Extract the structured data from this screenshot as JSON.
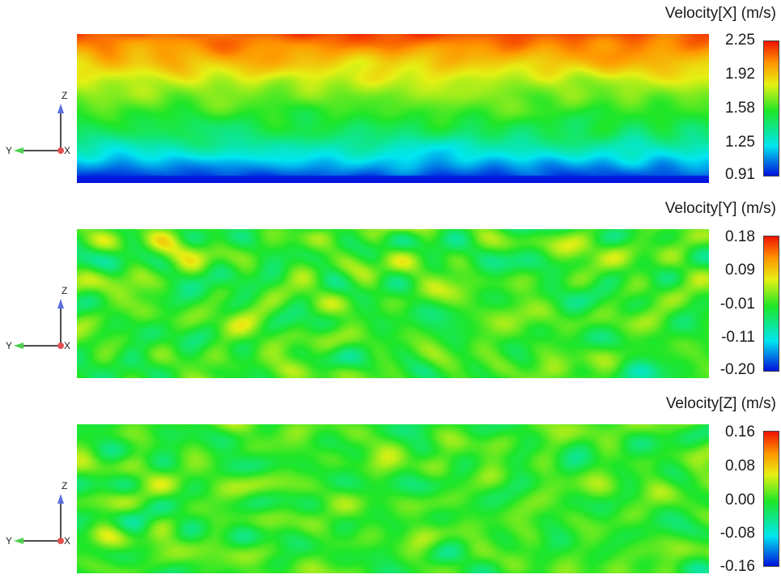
{
  "chart_data": [
    {
      "type": "heatmap",
      "title": "Velocity[X] (m/s)",
      "variable": "Velocity[X]",
      "unit": "m/s",
      "colorbar": {
        "ticks": [
          "2.25",
          "1.92",
          "1.58",
          "1.25",
          "0.91"
        ],
        "min": 0.91,
        "max": 2.25,
        "colormap": "rainbow (blue-cyan-green-yellow-red)"
      },
      "field_description": "Stratified: low values (blue/cyan) near bottom, rising through green to orange/red at top",
      "field_profile": {
        "vertical_levels_bottom_to_top": [
          0.91,
          1.2,
          1.45,
          1.6,
          1.75,
          1.95,
          2.15
        ],
        "noise_amplitude": 0.12
      },
      "axes_triad": {
        "labels": [
          "Z",
          "Y",
          "X"
        ]
      }
    },
    {
      "type": "heatmap",
      "title": "Velocity[Y] (m/s)",
      "variable": "Velocity[Y]",
      "unit": "m/s",
      "colorbar": {
        "ticks": [
          "0.18",
          "0.09",
          "-0.01",
          "-0.11",
          "-0.20"
        ],
        "min": -0.2,
        "max": 0.18,
        "colormap": "rainbow (blue-cyan-green-yellow-red)"
      },
      "field_description": "Turbulent fluctuations around zero; mostly green with scattered yellow, cyan, red and blue patches; red streak near bottom center",
      "field_profile": {
        "vertical_levels_bottom_to_top": [
          -0.01,
          -0.01,
          -0.01,
          -0.01,
          -0.01
        ],
        "noise_amplitude": 0.09
      },
      "axes_triad": {
        "labels": [
          "Z",
          "Y",
          "X"
        ]
      }
    },
    {
      "type": "heatmap",
      "title": "Velocity[Z] (m/s)",
      "variable": "Velocity[Z]",
      "unit": "m/s",
      "colorbar": {
        "ticks": [
          "0.16",
          "0.08",
          "0.00",
          "-0.08",
          "-0.16"
        ],
        "min": -0.16,
        "max": 0.16,
        "colormap": "rainbow (blue-cyan-green-yellow-red)"
      },
      "field_description": "Turbulent fluctuations around zero; mostly green with scattered yellow, cyan, red and blue patches concentrated in lower half",
      "field_profile": {
        "vertical_levels_bottom_to_top": [
          0.0,
          0.0,
          0.0,
          0.0,
          0.0
        ],
        "noise_amplitude": 0.06
      },
      "axes_triad": {
        "labels": [
          "Z",
          "Y",
          "X"
        ]
      }
    }
  ]
}
